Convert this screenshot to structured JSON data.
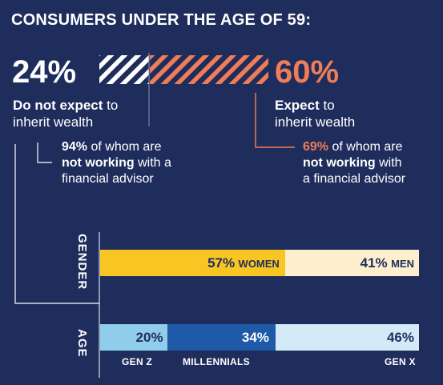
{
  "title": "CONSUMERS UNDER THE AGE OF 59:",
  "left": {
    "pct": "24%",
    "label_bold": "Do not expect",
    "label_rest": " to",
    "label_line2": "inherit wealth",
    "sub_pct": "94%",
    "sub_line1": " of whom are",
    "sub_bold": "not working",
    "sub_line2_rest": " with a",
    "sub_line3": "financial advisor"
  },
  "right": {
    "pct": "60%",
    "label_bold": "Expect",
    "label_rest": " to",
    "label_line2": "inherit wealth",
    "sub_pct": "69%",
    "sub_line1": " of whom are",
    "sub_bold": "not working",
    "sub_line2_rest": " with",
    "sub_line3": "a financial advisor"
  },
  "colors": {
    "background": "#1f2d5c",
    "orange": "#ef7d58",
    "women": "#f7c623",
    "men": "#fdefcd",
    "genz": "#8fcdeb",
    "millennials": "#1e5aa8",
    "genx": "#d3eaf7"
  },
  "chart_data": [
    {
      "type": "bar",
      "title": "GENDER",
      "segments": [
        {
          "value": 57,
          "label": "57%",
          "name": "WOMEN"
        },
        {
          "value": 41,
          "label": "41%",
          "name": "MEN"
        }
      ]
    },
    {
      "type": "bar",
      "title": "AGE",
      "segments": [
        {
          "value": 20,
          "label": "20%",
          "name": "GEN Z"
        },
        {
          "value": 34,
          "label": "34%",
          "name": "MILLENNIALS"
        },
        {
          "value": 46,
          "label": "46%",
          "name": "GEN X"
        }
      ]
    }
  ]
}
